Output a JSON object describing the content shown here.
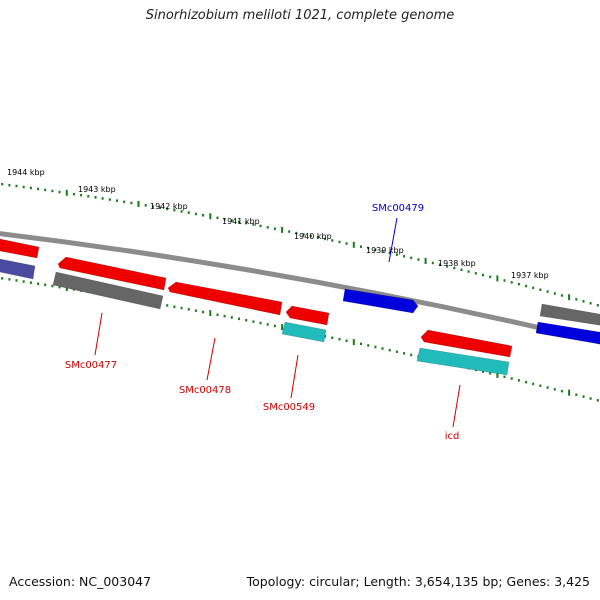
{
  "title": "Sinorhizobium meliloti 1021, complete genome",
  "footer": {
    "accession": "Accession: NC_003047",
    "summary": "Topology: circular; Length: 3,654,135 bp; Genes: 3,425"
  },
  "ticks": [
    {
      "label": "1944 kbp",
      "color": "#000000"
    },
    {
      "label": "1943 kbp",
      "color": "#000000"
    },
    {
      "label": "1942 kbp",
      "color": "#000000"
    },
    {
      "label": "1941 kbp",
      "color": "#000000"
    },
    {
      "label": "1940 kbp",
      "color": "#000000"
    },
    {
      "label": "1939 kbp",
      "color": "#000000"
    },
    {
      "label": "1938 kbp",
      "color": "#000000"
    },
    {
      "label": "1937 kbp",
      "color": "#000000"
    }
  ],
  "gene_labels": [
    {
      "name": "SMc00479",
      "color": "#0000cc"
    },
    {
      "name": "SMc00477",
      "color": "#cc0000"
    },
    {
      "name": "SMc00478",
      "color": "#cc0000"
    },
    {
      "name": "SMc00549",
      "color": "#cc0000"
    },
    {
      "name": "icd",
      "color": "#cc0000"
    }
  ],
  "colors": {
    "backbone": "#8c8c8c",
    "tick_dots": "#1a7a1a",
    "forward_gene": "#0000dd",
    "reverse_gene": "#ee0000",
    "other_gene": "#666666",
    "rna_gene": "#22bbbb",
    "dark_blue_gene": "#4a4aa0"
  }
}
